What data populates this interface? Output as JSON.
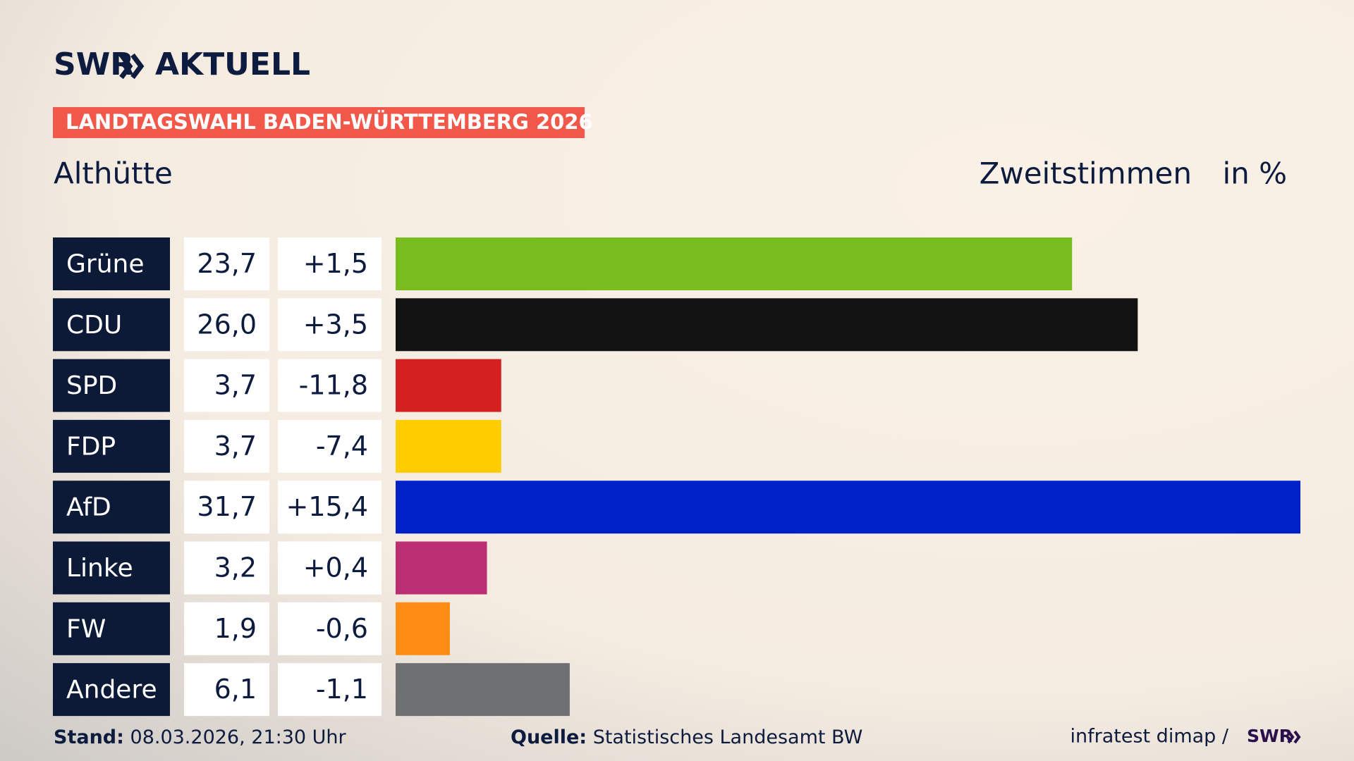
{
  "header": {
    "logo": "SWR",
    "logo_suffix": "AKTUELL"
  },
  "chart_data": {
    "type": "bar",
    "title": "LANDTAGSWAHL BADEN-WÜRTTEMBERG 2026",
    "subtitle": "Althütte",
    "value_title": "Zweitstimmen",
    "unit": "in %",
    "categories": [
      "Grüne",
      "CDU",
      "SPD",
      "FDP",
      "AfD",
      "Linke",
      "FW",
      "Andere"
    ],
    "values": [
      23.7,
      26.0,
      3.7,
      3.7,
      31.7,
      3.2,
      1.9,
      6.1
    ],
    "value_labels": [
      "23,7",
      "26,0",
      "3,7",
      "3,7",
      "31,7",
      "3,2",
      "1,9",
      "6,1"
    ],
    "changes": [
      1.5,
      3.5,
      -11.8,
      -7.4,
      15.4,
      0.4,
      -0.6,
      -1.1
    ],
    "change_labels": [
      "+1,5",
      "+3,5",
      "-11,8",
      "-7,4",
      "+15,4",
      "+0,4",
      "-0,6",
      "-1,1"
    ],
    "colors": [
      "#78bc1e",
      "#121212",
      "#d42020",
      "#ffcc00",
      "#0021c7",
      "#bc2e72",
      "#ff8c14",
      "#6f7072"
    ]
  },
  "footer": {
    "stand_label": "Stand:",
    "stand": "08.03.2026, 21:30 Uhr",
    "source_label": "Quelle:",
    "source": "Statistisches Landesamt BW",
    "credit": "infratest dimap /",
    "credit_logo": "SWR"
  }
}
